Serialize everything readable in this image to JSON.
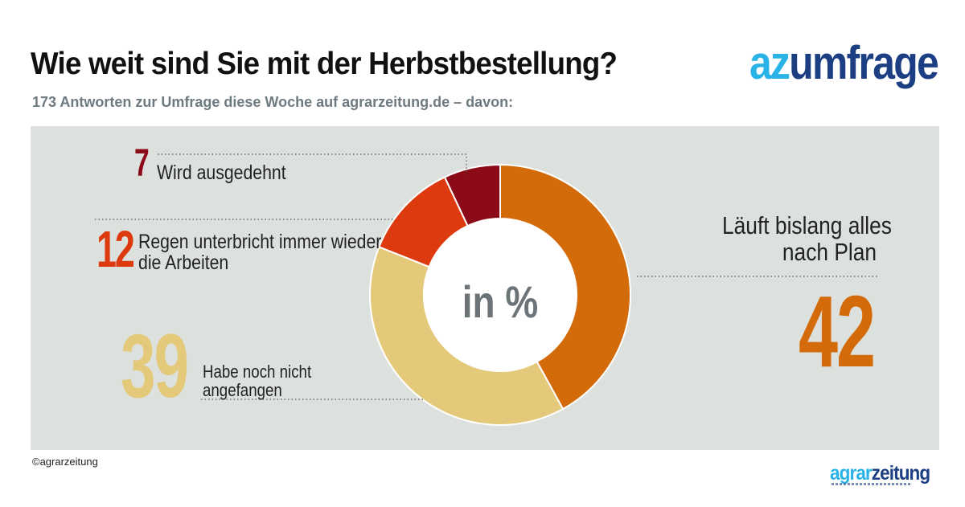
{
  "header": {
    "title": "Wie weit sind Sie mit der Herbstbestellung?",
    "subtitle": "173 Antworten zur Umfrage diese Woche auf agrarzeitung.de – davon:"
  },
  "brand": {
    "part1": "az",
    "part2": "umfrage"
  },
  "footer": {
    "copyright": "©agrarzeitung",
    "logo_part1": "agrar",
    "logo_part2": "zeitung"
  },
  "colors": {
    "background_panel": "#dde1de",
    "accent_light_blue": "#2ab3e6",
    "accent_dark_blue": "#1b3f82"
  },
  "chart_data": {
    "type": "pie",
    "donut": true,
    "center_label": "in %",
    "slices": [
      {
        "value": 42,
        "label_lines": [
          "Läuft bislang alles",
          "nach Plan"
        ],
        "color": "#d46b0a"
      },
      {
        "value": 39,
        "label_lines": [
          "Habe noch nicht",
          "angefangen"
        ],
        "color": "#e4c97b"
      },
      {
        "value": 12,
        "label_lines": [
          "Regen unterbricht immer wieder",
          "die Arbeiten"
        ],
        "color": "#dd3a0f"
      },
      {
        "value": 7,
        "label_lines": [
          "Wird ausgedehnt"
        ],
        "color": "#8b0c18"
      }
    ]
  }
}
